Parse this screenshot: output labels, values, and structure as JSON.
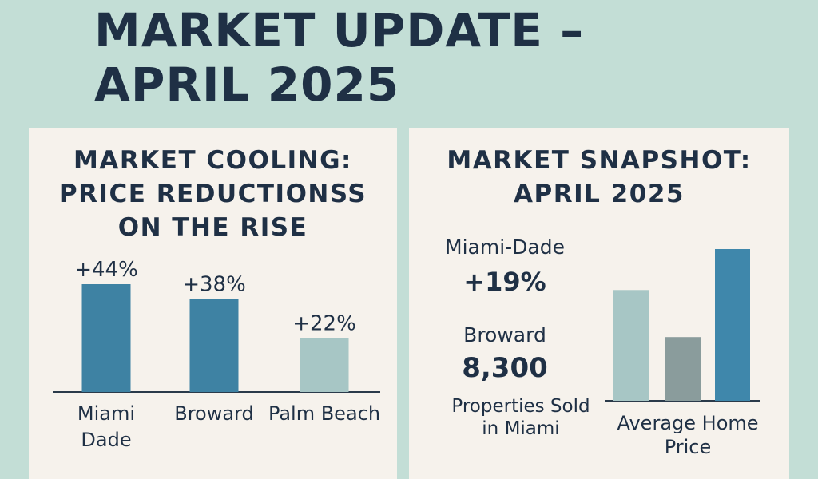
{
  "title_lines": [
    "MARKET UPDATE –",
    "APRIL 2025"
  ],
  "colors": {
    "background": "#c3ded6",
    "panel": "#f6f2ec",
    "text": "#1f3045",
    "bar_dark": "#3e82a3",
    "bar_light": "#a7c6c5",
    "bar_gray": "#8a9c9c",
    "bar_blue": "#3f87ab"
  },
  "left_panel": {
    "heading_lines": [
      "MARKET COOLING:",
      "PRICE REDUCTIONSS",
      "ON THE RISE"
    ]
  },
  "right_panel": {
    "heading_lines": [
      "MARKET SNAPSHOT:",
      "APRIL 2025"
    ],
    "stats": {
      "miami_label": "Miami-Dade",
      "miami_value": "+19%",
      "broward_label": "Broward",
      "broward_value": "8,300",
      "sold_caption_lines": [
        "Properties Sold",
        "in Miami"
      ]
    }
  },
  "chart_data": [
    {
      "type": "bar",
      "title": "MARKET COOLING: PRICE REDUCTIONSS ON THE RISE",
      "categories": [
        "Miami Dade",
        "Broward",
        "Palm Beach"
      ],
      "category_label_lines": [
        [
          "Miami",
          "Dade"
        ],
        [
          "Broward"
        ],
        [
          "Palm Beach"
        ]
      ],
      "values": [
        44,
        38,
        22
      ],
      "data_labels": [
        "+44%",
        "+38%",
        "+22%"
      ],
      "bar_colors": [
        "#3e82a3",
        "#3e82a3",
        "#a7c6c5"
      ],
      "unit": "%",
      "ylim": [
        0,
        44
      ],
      "grid": false,
      "legend": "none"
    },
    {
      "type": "bar",
      "categories": [
        "",
        "",
        ""
      ],
      "values": [
        0.73,
        0.42,
        1.0
      ],
      "bar_colors": [
        "#a7c6c5",
        "#8a9c9c",
        "#3f87ab"
      ],
      "xlabel_lines": [
        "Average Home",
        "Price"
      ],
      "ylim": [
        0,
        1
      ],
      "grid": false,
      "legend": "none"
    }
  ]
}
